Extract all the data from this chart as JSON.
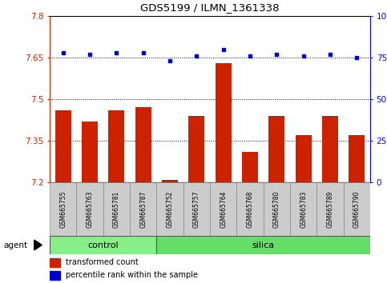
{
  "title": "GDS5199 / ILMN_1361338",
  "samples": [
    "GSM665755",
    "GSM665763",
    "GSM665781",
    "GSM665787",
    "GSM665752",
    "GSM665757",
    "GSM665764",
    "GSM665768",
    "GSM665780",
    "GSM665783",
    "GSM665789",
    "GSM665790"
  ],
  "groups": [
    "control",
    "control",
    "control",
    "control",
    "silica",
    "silica",
    "silica",
    "silica",
    "silica",
    "silica",
    "silica",
    "silica"
  ],
  "red_values": [
    7.46,
    7.42,
    7.46,
    7.47,
    7.21,
    7.44,
    7.63,
    7.31,
    7.44,
    7.37,
    7.44,
    7.37
  ],
  "blue_values": [
    78,
    77,
    78,
    78,
    73,
    76,
    80,
    76,
    77,
    76,
    77,
    75
  ],
  "ylim_left": [
    7.2,
    7.8
  ],
  "ylim_right": [
    0,
    100
  ],
  "yticks_left": [
    7.2,
    7.35,
    7.5,
    7.65,
    7.8
  ],
  "yticks_right": [
    0,
    25,
    50,
    75,
    100
  ],
  "ytick_labels_left": [
    "7.2",
    "7.35",
    "7.5",
    "7.65",
    "7.8"
  ],
  "ytick_labels_right": [
    "0",
    "25",
    "50",
    "75",
    "100%"
  ],
  "hlines": [
    7.35,
    7.5,
    7.65
  ],
  "bar_color": "#cc2200",
  "dot_color": "#0000cc",
  "bar_bottom": 7.2,
  "control_color": "#88ee88",
  "silica_color": "#66dd66",
  "agent_label": "agent",
  "legend_items": [
    "transformed count",
    "percentile rank within the sample"
  ],
  "fig_width": 4.83,
  "fig_height": 3.54,
  "n_control": 4,
  "n_silica": 8
}
